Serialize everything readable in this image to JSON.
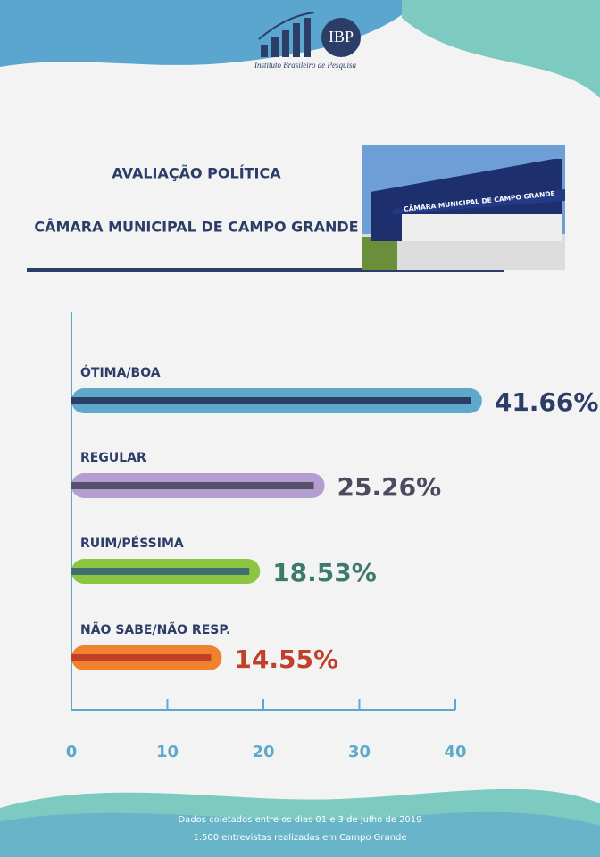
{
  "logo": {
    "mark": "IBP",
    "name": "Instituto Brasileiro de Pesquisa"
  },
  "photo_sign": "CÂMARA MUNICIPAL DE CAMPO GRANDE",
  "chart_data": {
    "type": "hbar",
    "title": "AVALIAÇÃO POLÍTICA",
    "subtitle": "CÂMARA MUNICIPAL DE CAMPO GRANDE",
    "categories": [
      "ÓTIMA/BOA",
      "REGULAR",
      "RUIM/PÉSSIMA",
      "NÃO SABE/NÃO RESP."
    ],
    "values": [
      41.66,
      25.26,
      18.53,
      14.55
    ],
    "value_labels": [
      "41.66%",
      "25.26%",
      "18.53%",
      "14.55%"
    ],
    "colors": [
      "#5ea9cb",
      "#b49dd0",
      "#8cc540",
      "#f0822f"
    ],
    "inner_colors": [
      "#2c3d68",
      "#57506b",
      "#3e6f72",
      "#bf3f29"
    ],
    "label_colors": [
      "#2c3d68",
      "#4b4a5f",
      "#3e7a6b",
      "#c0412a"
    ],
    "xlim": [
      0,
      40
    ],
    "xticks": [
      0,
      10,
      20,
      30,
      40
    ]
  },
  "footer": [
    "Dados coletados entre os dias 01 e 3 de julho de 2019",
    "1.500 entrevistas realizadas em Campo Grande"
  ]
}
